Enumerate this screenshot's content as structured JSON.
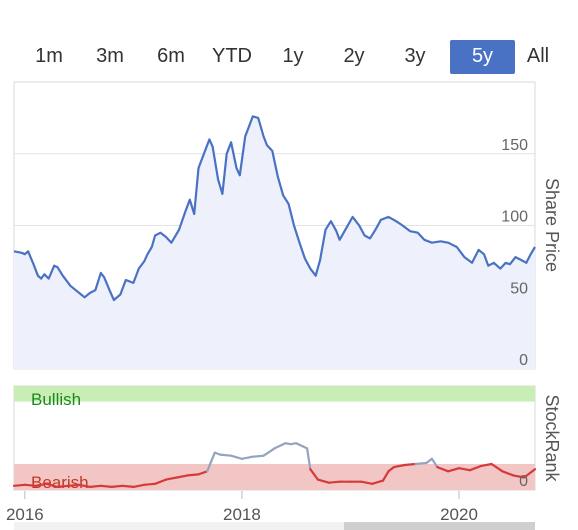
{
  "range_selector": {
    "buttons": [
      "1m",
      "3m",
      "6m",
      "YTD",
      "1y",
      "2y",
      "3y",
      "5y",
      "All"
    ],
    "active": "5y",
    "active_color": "#4a72c4"
  },
  "chart_data": [
    {
      "type": "area",
      "ylabel": "Share Price",
      "yticks": [
        0,
        50,
        100,
        150
      ],
      "ylim": [
        0,
        200
      ],
      "xlim": [
        2015.9,
        2020.7
      ],
      "grid": true,
      "line_color": "#4a72c4",
      "fill_color": "#eef1fb",
      "x": [
        2015.9,
        2015.97,
        2016.0,
        2016.03,
        2016.08,
        2016.12,
        2016.15,
        2016.18,
        2016.22,
        2016.27,
        2016.3,
        2016.35,
        2016.42,
        2016.5,
        2016.55,
        2016.6,
        2016.65,
        2016.7,
        2016.73,
        2016.78,
        2016.82,
        2016.88,
        2016.93,
        2017.0,
        2017.05,
        2017.1,
        2017.13,
        2017.17,
        2017.2,
        2017.25,
        2017.3,
        2017.35,
        2017.42,
        2017.48,
        2017.52,
        2017.56,
        2017.6,
        2017.65,
        2017.7,
        2017.73,
        2017.78,
        2017.82,
        2017.86,
        2017.9,
        2017.95,
        2017.98,
        2018.03,
        2018.07,
        2018.1,
        2018.15,
        2018.2,
        2018.23,
        2018.28,
        2018.33,
        2018.38,
        2018.43,
        2018.48,
        2018.53,
        2018.58,
        2018.63,
        2018.68,
        2018.72,
        2018.77,
        2018.82,
        2018.87,
        2018.9,
        2018.96,
        2019.02,
        2019.08,
        2019.13,
        2019.18,
        2019.23,
        2019.28,
        2019.35,
        2019.42,
        2019.48,
        2019.55,
        2019.62,
        2019.68,
        2019.75,
        2019.83,
        2019.9,
        2019.98,
        2020.05,
        2020.12,
        2020.18,
        2020.23,
        2020.27,
        2020.32,
        2020.38,
        2020.43,
        2020.47,
        2020.52,
        2020.57,
        2020.62,
        2020.66,
        2020.7
      ],
      "values": [
        82,
        81,
        80,
        82,
        73,
        65,
        63,
        66,
        63,
        72,
        71,
        65,
        58,
        53,
        50,
        53,
        55,
        67,
        64,
        55,
        48,
        52,
        62,
        60,
        70,
        75,
        80,
        85,
        93,
        95,
        92,
        88,
        97,
        110,
        118,
        108,
        140,
        150,
        160,
        155,
        132,
        122,
        150,
        158,
        140,
        135,
        162,
        170,
        176,
        175,
        162,
        156,
        152,
        134,
        121,
        115,
        100,
        88,
        77,
        70,
        65,
        76,
        97,
        103,
        96,
        90,
        98,
        106,
        100,
        93,
        91,
        97,
        104,
        106,
        103,
        100,
        96,
        95,
        90,
        88,
        89,
        88,
        85,
        78,
        74,
        83,
        80,
        72,
        74,
        70,
        74,
        73,
        78,
        76,
        74,
        80,
        85
      ]
    },
    {
      "type": "line",
      "ylabel": "StockRank",
      "yticks": [
        0
      ],
      "ylim": [
        0,
        100
      ],
      "xlim": [
        2015.9,
        2020.7
      ],
      "x_ticks": [
        2016,
        2018,
        2020
      ],
      "x_tick_labels": [
        "2016",
        "2018",
        "2020"
      ],
      "bands": [
        {
          "label": "Bullish",
          "from": 85,
          "to": 100,
          "color": "#c8eeb6",
          "text_color": "#1a8a1a"
        },
        {
          "label": "Bearish",
          "from": 0,
          "to": 25,
          "color": "#f3c6c6",
          "text_color": "#c0392b"
        }
      ],
      "neutral_color": "#93a4c0",
      "bearish_color": "#d43a3a",
      "x": [
        2015.9,
        2016.0,
        2016.1,
        2016.2,
        2016.3,
        2016.4,
        2016.5,
        2016.6,
        2016.7,
        2016.8,
        2016.9,
        2017.0,
        2017.1,
        2017.2,
        2017.3,
        2017.4,
        2017.5,
        2017.6,
        2017.68,
        2017.75,
        2017.8,
        2017.9,
        2018.0,
        2018.1,
        2018.2,
        2018.3,
        2018.4,
        2018.45,
        2018.5,
        2018.6,
        2018.63,
        2018.7,
        2018.8,
        2018.9,
        2019.0,
        2019.1,
        2019.2,
        2019.3,
        2019.35,
        2019.4,
        2019.5,
        2019.6,
        2019.7,
        2019.75,
        2019.8,
        2019.9,
        2020.0,
        2020.1,
        2020.2,
        2020.3,
        2020.4,
        2020.5,
        2020.6,
        2020.7
      ],
      "values": [
        4,
        5,
        4,
        6,
        3,
        4,
        5,
        3,
        4,
        3,
        4,
        3,
        5,
        6,
        10,
        12,
        14,
        15,
        18,
        36,
        34,
        33,
        30,
        32,
        33,
        40,
        45,
        44,
        45,
        40,
        20,
        10,
        7,
        8,
        8,
        8,
        6,
        9,
        18,
        22,
        24,
        25,
        26,
        30,
        22,
        18,
        21,
        19,
        23,
        25,
        18,
        14,
        12,
        20
      ]
    }
  ]
}
